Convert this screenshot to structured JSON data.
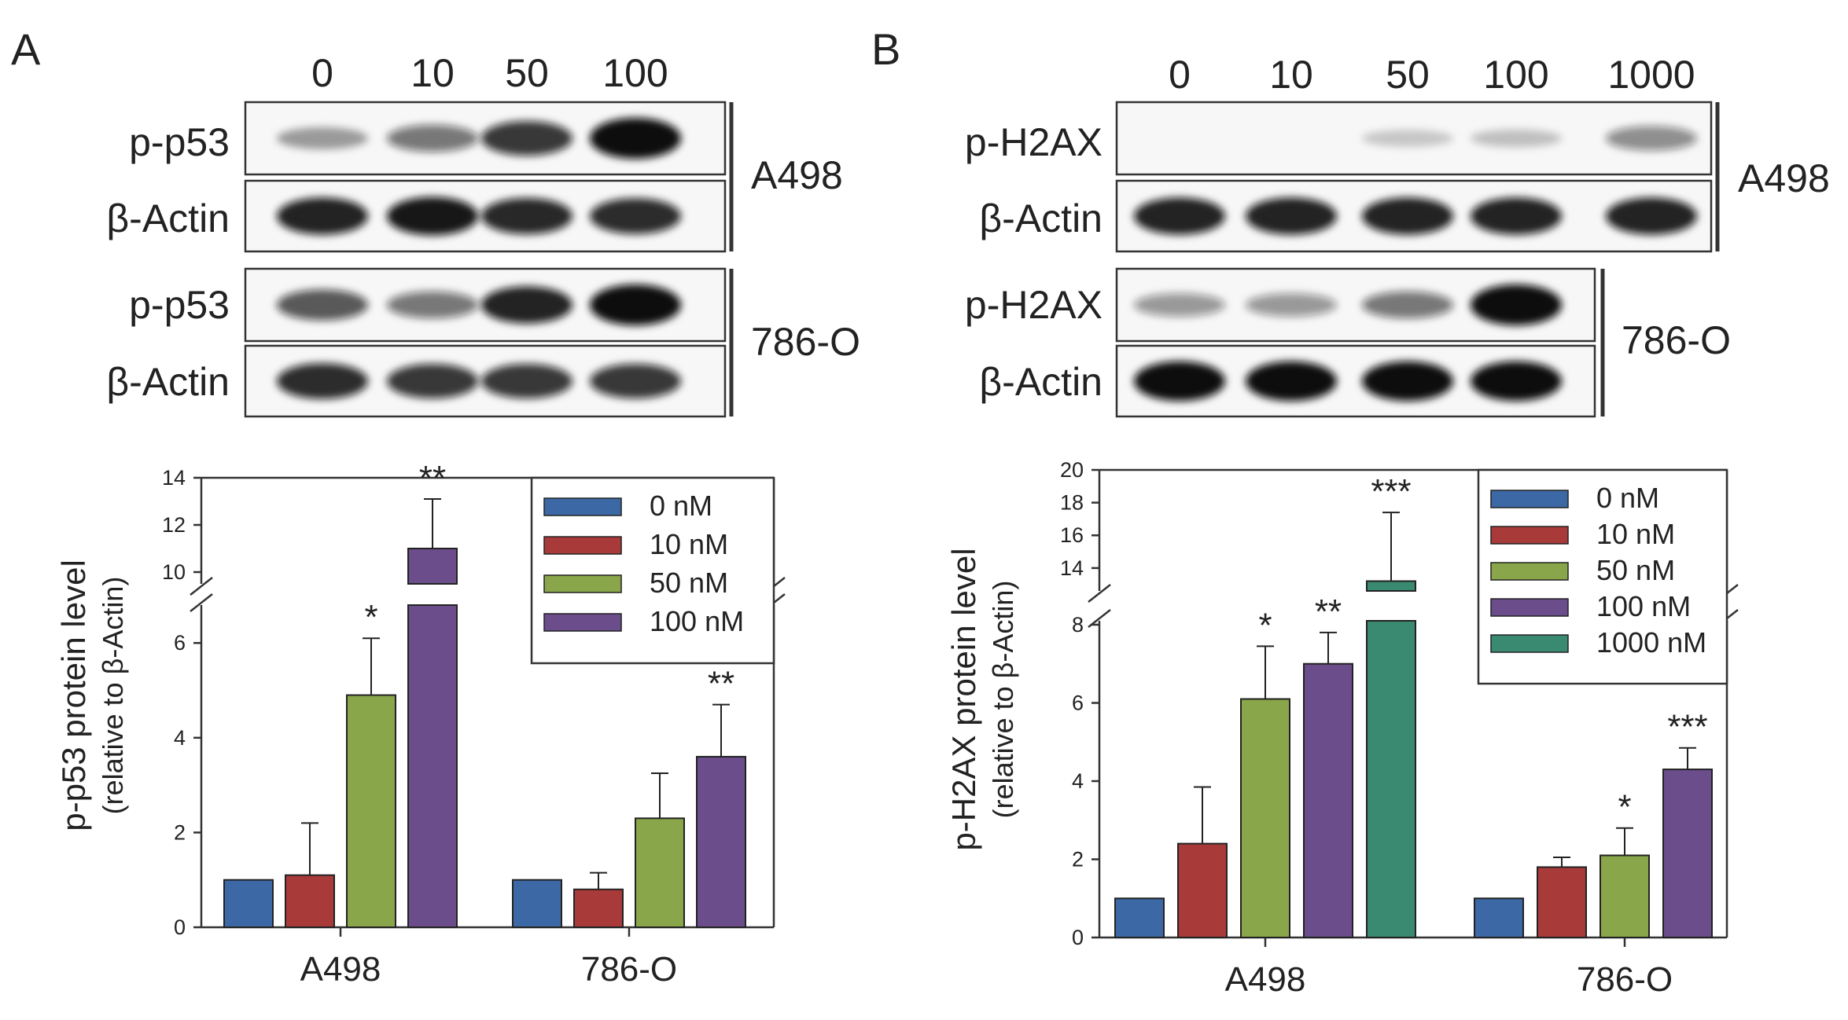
{
  "panels": [
    {
      "letter": "A",
      "lane_labels": [
        "0",
        "10",
        "50",
        "100"
      ],
      "blots": [
        {
          "cell_line": "A498",
          "rows": [
            {
              "protein": "p-p53",
              "intensity": [
                0.25,
                0.45,
                0.75,
                1.0
              ]
            },
            {
              "protein": "β-Actin",
              "intensity": [
                0.85,
                0.9,
                0.82,
                0.8
              ]
            }
          ]
        },
        {
          "cell_line": "786-O",
          "rows": [
            {
              "protein": "p-p53",
              "intensity": [
                0.6,
                0.45,
                0.85,
                1.0
              ]
            },
            {
              "protein": "β-Actin",
              "intensity": [
                0.8,
                0.75,
                0.75,
                0.75
              ]
            }
          ]
        }
      ]
    },
    {
      "letter": "B",
      "lane_labels": [
        "0",
        "10",
        "50",
        "100",
        "1000"
      ],
      "blots": [
        {
          "cell_line": "A498",
          "rows": [
            {
              "protein": "p-H2AX",
              "intensity": [
                0.0,
                0.0,
                0.05,
                0.08,
                0.35
              ]
            },
            {
              "protein": "β-Actin",
              "intensity": [
                0.85,
                0.85,
                0.85,
                0.85,
                0.85
              ]
            }
          ]
        },
        {
          "cell_line": "786-O",
          "rows": [
            {
              "protein": "p-H2AX",
              "intensity": [
                0.3,
                0.3,
                0.45,
                1.0
              ]
            },
            {
              "protein": "β-Actin",
              "intensity": [
                0.95,
                0.95,
                0.95,
                0.95
              ]
            }
          ]
        }
      ]
    }
  ],
  "chart_data": [
    {
      "type": "bar",
      "ylabel": "p-p53 protein level",
      "ylabel2": "(relative to β-Actin)",
      "categories": [
        "A498",
        "786-O"
      ],
      "series": [
        {
          "name": "0 nM",
          "color": "#3c69a5",
          "values": [
            1.0,
            1.0
          ],
          "errors": [
            0,
            0
          ],
          "sig": [
            "",
            ""
          ]
        },
        {
          "name": "10 nM",
          "color": "#a83b3a",
          "values": [
            1.1,
            0.8
          ],
          "errors": [
            1.1,
            0.35
          ],
          "sig": [
            "",
            ""
          ]
        },
        {
          "name": "50 nM",
          "color": "#8aa64a",
          "values": [
            4.9,
            2.3
          ],
          "errors": [
            1.2,
            0.95
          ],
          "sig": [
            "*",
            ""
          ]
        },
        {
          "name": "100 nM",
          "color": "#6a4d8a",
          "values": [
            11.0,
            3.6
          ],
          "errors": [
            2.1,
            1.1
          ],
          "sig": [
            "**",
            "**"
          ]
        }
      ],
      "axis_break": {
        "lower": [
          0,
          6.8
        ],
        "upper": [
          9.5,
          14
        ]
      },
      "lower_ticks": [
        0,
        2,
        4,
        6
      ],
      "upper_ticks": [
        10,
        12,
        14
      ]
    },
    {
      "type": "bar",
      "ylabel": "p-H2AX protein level",
      "ylabel2": "(relative to β-Actin)",
      "categories": [
        "A498",
        "786-O"
      ],
      "series": [
        {
          "name": "0 nM",
          "color": "#3c69a5",
          "values": [
            1.0,
            1.0
          ],
          "errors": [
            0,
            0
          ],
          "sig": [
            "",
            ""
          ]
        },
        {
          "name": "10 nM",
          "color": "#a83b3a",
          "values": [
            2.4,
            1.8
          ],
          "errors": [
            1.45,
            0.25
          ],
          "sig": [
            "",
            ""
          ]
        },
        {
          "name": "50 nM",
          "color": "#8aa64a",
          "values": [
            6.1,
            2.1
          ],
          "errors": [
            1.35,
            0.7
          ],
          "sig": [
            "*",
            "*"
          ]
        },
        {
          "name": "100 nM",
          "color": "#6a4d8a",
          "values": [
            7.0,
            4.3
          ],
          "errors": [
            0.8,
            0.55
          ],
          "sig": [
            "**",
            "***"
          ]
        },
        {
          "name": "1000 nM",
          "color": "#3a8a72",
          "values": [
            13.2,
            null
          ],
          "errors": [
            4.2,
            0
          ],
          "sig": [
            "***",
            ""
          ]
        }
      ],
      "axis_break": {
        "lower": [
          0,
          8.1
        ],
        "upper": [
          12.6,
          20
        ]
      },
      "lower_ticks": [
        0,
        2,
        4,
        6,
        8
      ],
      "upper_ticks": [
        14,
        16,
        18,
        20
      ]
    }
  ]
}
